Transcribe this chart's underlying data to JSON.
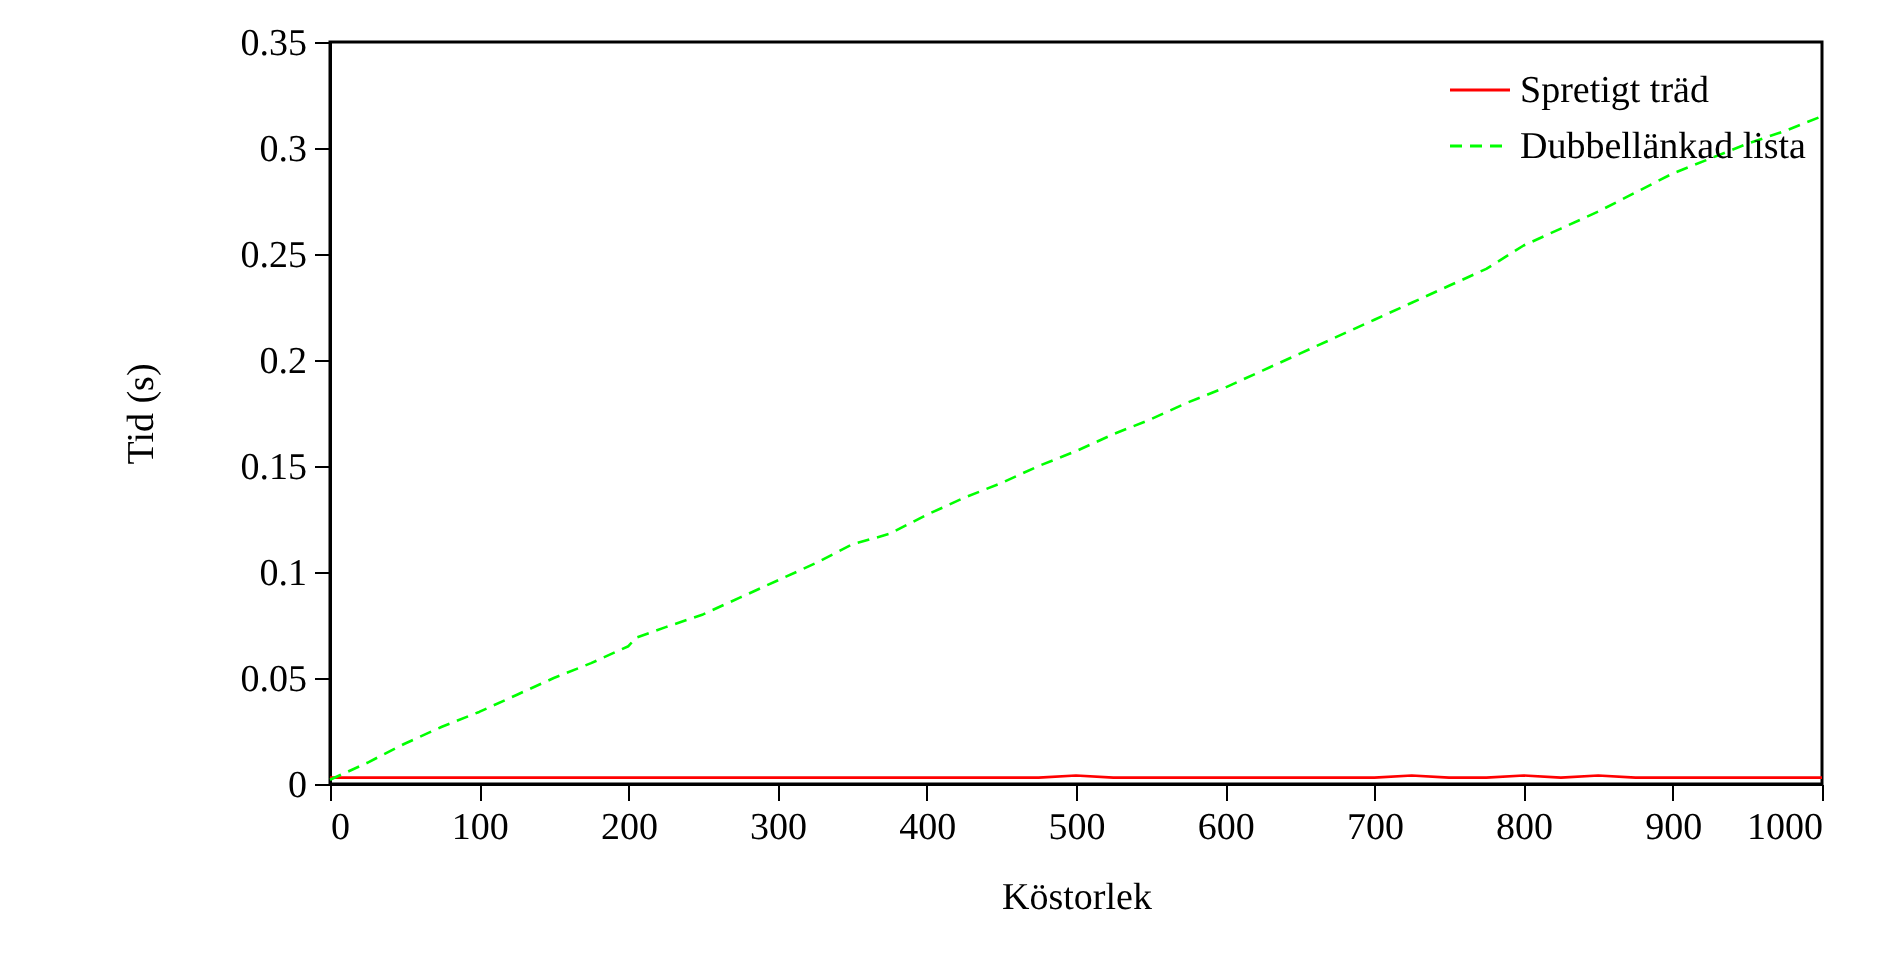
{
  "chart_data": {
    "type": "line",
    "xlabel": "Köstorlek",
    "ylabel": "Tid (s)",
    "xlim": [
      0,
      1000
    ],
    "xticks": [
      0,
      100,
      200,
      300,
      400,
      500,
      600,
      700,
      800,
      900,
      1000
    ],
    "ylim": [
      0,
      0.35
    ],
    "yticks": [
      0,
      0.05,
      0.1,
      0.15,
      0.2,
      0.25,
      0.3,
      0.35
    ],
    "grid": false,
    "legend": "top right",
    "marker": "none",
    "x": [
      0,
      25,
      50,
      75,
      100,
      125,
      150,
      175,
      200,
      205,
      225,
      250,
      275,
      300,
      325,
      350,
      375,
      400,
      425,
      450,
      475,
      500,
      525,
      550,
      575,
      600,
      625,
      650,
      675,
      700,
      725,
      750,
      775,
      800,
      825,
      850,
      875,
      900,
      925,
      950,
      975,
      1000
    ],
    "series": [
      {
        "name": "Spretigt träd",
        "color": "#ff0000",
        "line_style": "solid",
        "values": [
          0.003,
          0.003,
          0.003,
          0.003,
          0.003,
          0.003,
          0.003,
          0.003,
          0.003,
          0.003,
          0.003,
          0.003,
          0.003,
          0.003,
          0.003,
          0.003,
          0.003,
          0.003,
          0.003,
          0.003,
          0.003,
          0.004,
          0.003,
          0.003,
          0.003,
          0.003,
          0.003,
          0.003,
          0.003,
          0.003,
          0.004,
          0.003,
          0.003,
          0.004,
          0.003,
          0.004,
          0.003,
          0.003,
          0.003,
          0.003,
          0.003,
          0.003
        ]
      },
      {
        "name": "Dubbellänkad lista",
        "color": "#00ff00",
        "line_style": "dashed",
        "values": [
          0.002,
          0.01,
          0.019,
          0.027,
          0.034,
          0.042,
          0.05,
          0.057,
          0.065,
          0.069,
          0.074,
          0.08,
          0.088,
          0.096,
          0.104,
          0.113,
          0.118,
          0.127,
          0.135,
          0.142,
          0.15,
          0.157,
          0.165,
          0.172,
          0.18,
          0.187,
          0.195,
          0.203,
          0.211,
          0.219,
          0.227,
          0.235,
          0.243,
          0.254,
          0.262,
          0.27,
          0.279,
          0.288,
          0.295,
          0.302,
          0.308,
          0.315
        ]
      }
    ]
  }
}
